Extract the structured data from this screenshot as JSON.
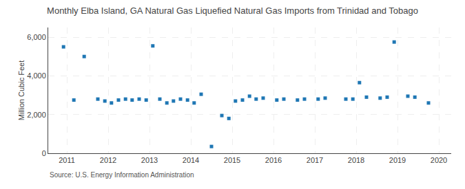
{
  "chart_data": {
    "type": "scatter",
    "title": "Monthly Elba Island, GA Natural Gas Liquefied Natural Gas Imports from Trinidad and Tobago",
    "ylabel": "Million Cubic Feet",
    "annotations": [
      "Source: U.S. Energy Information Administration"
    ],
    "marker": "square",
    "grid": true,
    "xlim": [
      2010.55,
      2020.3
    ],
    "xticks": [
      2011,
      2012,
      2013,
      2014,
      2015,
      2016,
      2017,
      2018,
      2019,
      2020
    ],
    "ylim": [
      0,
      6500
    ],
    "yticks": [
      0,
      {
        "value": 2000,
        "label": "2,000"
      },
      {
        "value": 4000,
        "label": "4,000"
      },
      {
        "value": 6000,
        "label": "6,000"
      }
    ],
    "x": [
      2010.92,
      2011.17,
      2011.42,
      2011.75,
      2011.92,
      2012.08,
      2012.25,
      2012.42,
      2012.58,
      2012.75,
      2012.92,
      2013.08,
      2013.25,
      2013.42,
      2013.58,
      2013.75,
      2013.92,
      2014.08,
      2014.25,
      2014.5,
      2014.75,
      2014.92,
      2015.08,
      2015.25,
      2015.42,
      2015.58,
      2015.75,
      2016.08,
      2016.25,
      2016.58,
      2016.75,
      2017.08,
      2017.25,
      2017.75,
      2017.92,
      2018.08,
      2018.25,
      2018.58,
      2018.75,
      2018.92,
      2019.25,
      2019.42,
      2019.75
    ],
    "values": [
      5500,
      2750,
      5000,
      2800,
      2700,
      2600,
      2750,
      2800,
      2750,
      2800,
      2750,
      5550,
      2800,
      2600,
      2700,
      2800,
      2750,
      2600,
      3050,
      350,
      1950,
      1800,
      2700,
      2750,
      2950,
      2800,
      2850,
      2750,
      2800,
      2750,
      2800,
      2800,
      2850,
      2800,
      2800,
      3650,
      2900,
      2850,
      2900,
      5750,
      2950,
      2900,
      2600
    ]
  }
}
